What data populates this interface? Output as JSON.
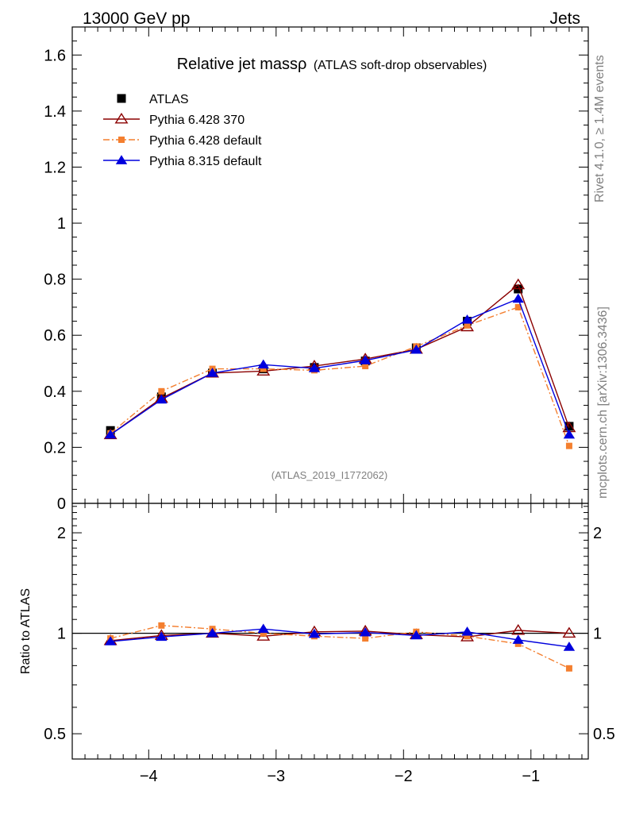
{
  "header": {
    "left": "13000 GeV pp",
    "right": "Jets"
  },
  "side_labels": {
    "upper": "Rivet 4.1.0, ≥ 1.4M events",
    "lower": "mcplots.cern.ch [arXiv:1306.3436]"
  },
  "chart_data": [
    {
      "type": "scatter",
      "title": "Relative jet massρ",
      "subtitle": "(ATLAS soft-drop observables)",
      "watermark": "(ATLAS_2019_I1772062)",
      "xlabel": "",
      "ylabel": "",
      "xlim": [
        -4.6,
        -0.55
      ],
      "ylim": [
        0,
        1.7
      ],
      "yticks": [
        0,
        0.2,
        0.4,
        0.6,
        0.8,
        1,
        1.2,
        1.4,
        1.6
      ],
      "ytick_labels": [
        "0",
        "0.2",
        "0.4",
        "0.6",
        "0.8",
        "1",
        "1.2",
        "1.4",
        "1.6"
      ],
      "legend_position": "top-left",
      "x": [
        -4.3,
        -3.9,
        -3.5,
        -3.1,
        -2.7,
        -2.3,
        -1.9,
        -1.5,
        -1.1,
        -0.7
      ],
      "series": [
        {
          "name": "ATLAS",
          "color": "#000000",
          "marker": "square",
          "line": "none",
          "values": [
            0.26,
            0.38,
            0.465,
            0.48,
            0.485,
            0.508,
            0.555,
            0.65,
            0.765,
            0.275
          ]
        },
        {
          "name": "Pythia 6.428 370",
          "color": "#8b0000",
          "marker": "triangle-open",
          "line": "solid",
          "values": [
            0.245,
            0.375,
            0.465,
            0.472,
            0.49,
            0.515,
            0.55,
            0.63,
            0.78,
            0.27
          ]
        },
        {
          "name": "Pythia 6.428 default",
          "color": "#f47f2f",
          "marker": "square",
          "line": "dashdot",
          "values": [
            0.25,
            0.4,
            0.48,
            0.48,
            0.475,
            0.49,
            0.56,
            0.635,
            0.7,
            0.205
          ]
        },
        {
          "name": "Pythia 8.315 default",
          "color": "#0000dd",
          "marker": "triangle",
          "line": "solid",
          "values": [
            0.245,
            0.37,
            0.465,
            0.495,
            0.482,
            0.51,
            0.548,
            0.655,
            0.73,
            0.245
          ]
        }
      ]
    },
    {
      "type": "line",
      "title": "",
      "xlabel": "",
      "ylabel": "Ratio to ATLAS",
      "xlim": [
        -4.6,
        -0.55
      ],
      "ylim": [
        0.42,
        2.45
      ],
      "yscale": "log",
      "reference_line": 1,
      "yticks": [
        0.5,
        1,
        2
      ],
      "ytick_labels": [
        "0.5",
        "1",
        "2"
      ],
      "xticks": [
        -4,
        -3,
        -2,
        -1
      ],
      "xtick_labels": [
        "−4",
        "−3",
        "−2",
        "−1"
      ],
      "x": [
        -4.3,
        -3.9,
        -3.5,
        -3.1,
        -2.7,
        -2.3,
        -1.9,
        -1.5,
        -1.1,
        -0.7
      ],
      "series": [
        {
          "name": "Pythia 6.428 370",
          "color": "#8b0000",
          "marker": "triangle-open",
          "line": "solid",
          "values": [
            0.95,
            0.985,
            1.0,
            0.98,
            1.01,
            1.015,
            0.99,
            0.975,
            1.02,
            1.0
          ]
        },
        {
          "name": "Pythia 6.428 default",
          "color": "#f47f2f",
          "marker": "square",
          "line": "dashdot",
          "values": [
            0.965,
            1.055,
            1.03,
            1.0,
            0.98,
            0.965,
            1.01,
            0.98,
            0.93,
            0.785
          ]
        },
        {
          "name": "Pythia 8.315 default",
          "color": "#0000dd",
          "marker": "triangle",
          "line": "solid",
          "values": [
            0.945,
            0.975,
            1.0,
            1.03,
            0.995,
            1.005,
            0.985,
            1.01,
            0.955,
            0.91
          ]
        }
      ]
    }
  ]
}
